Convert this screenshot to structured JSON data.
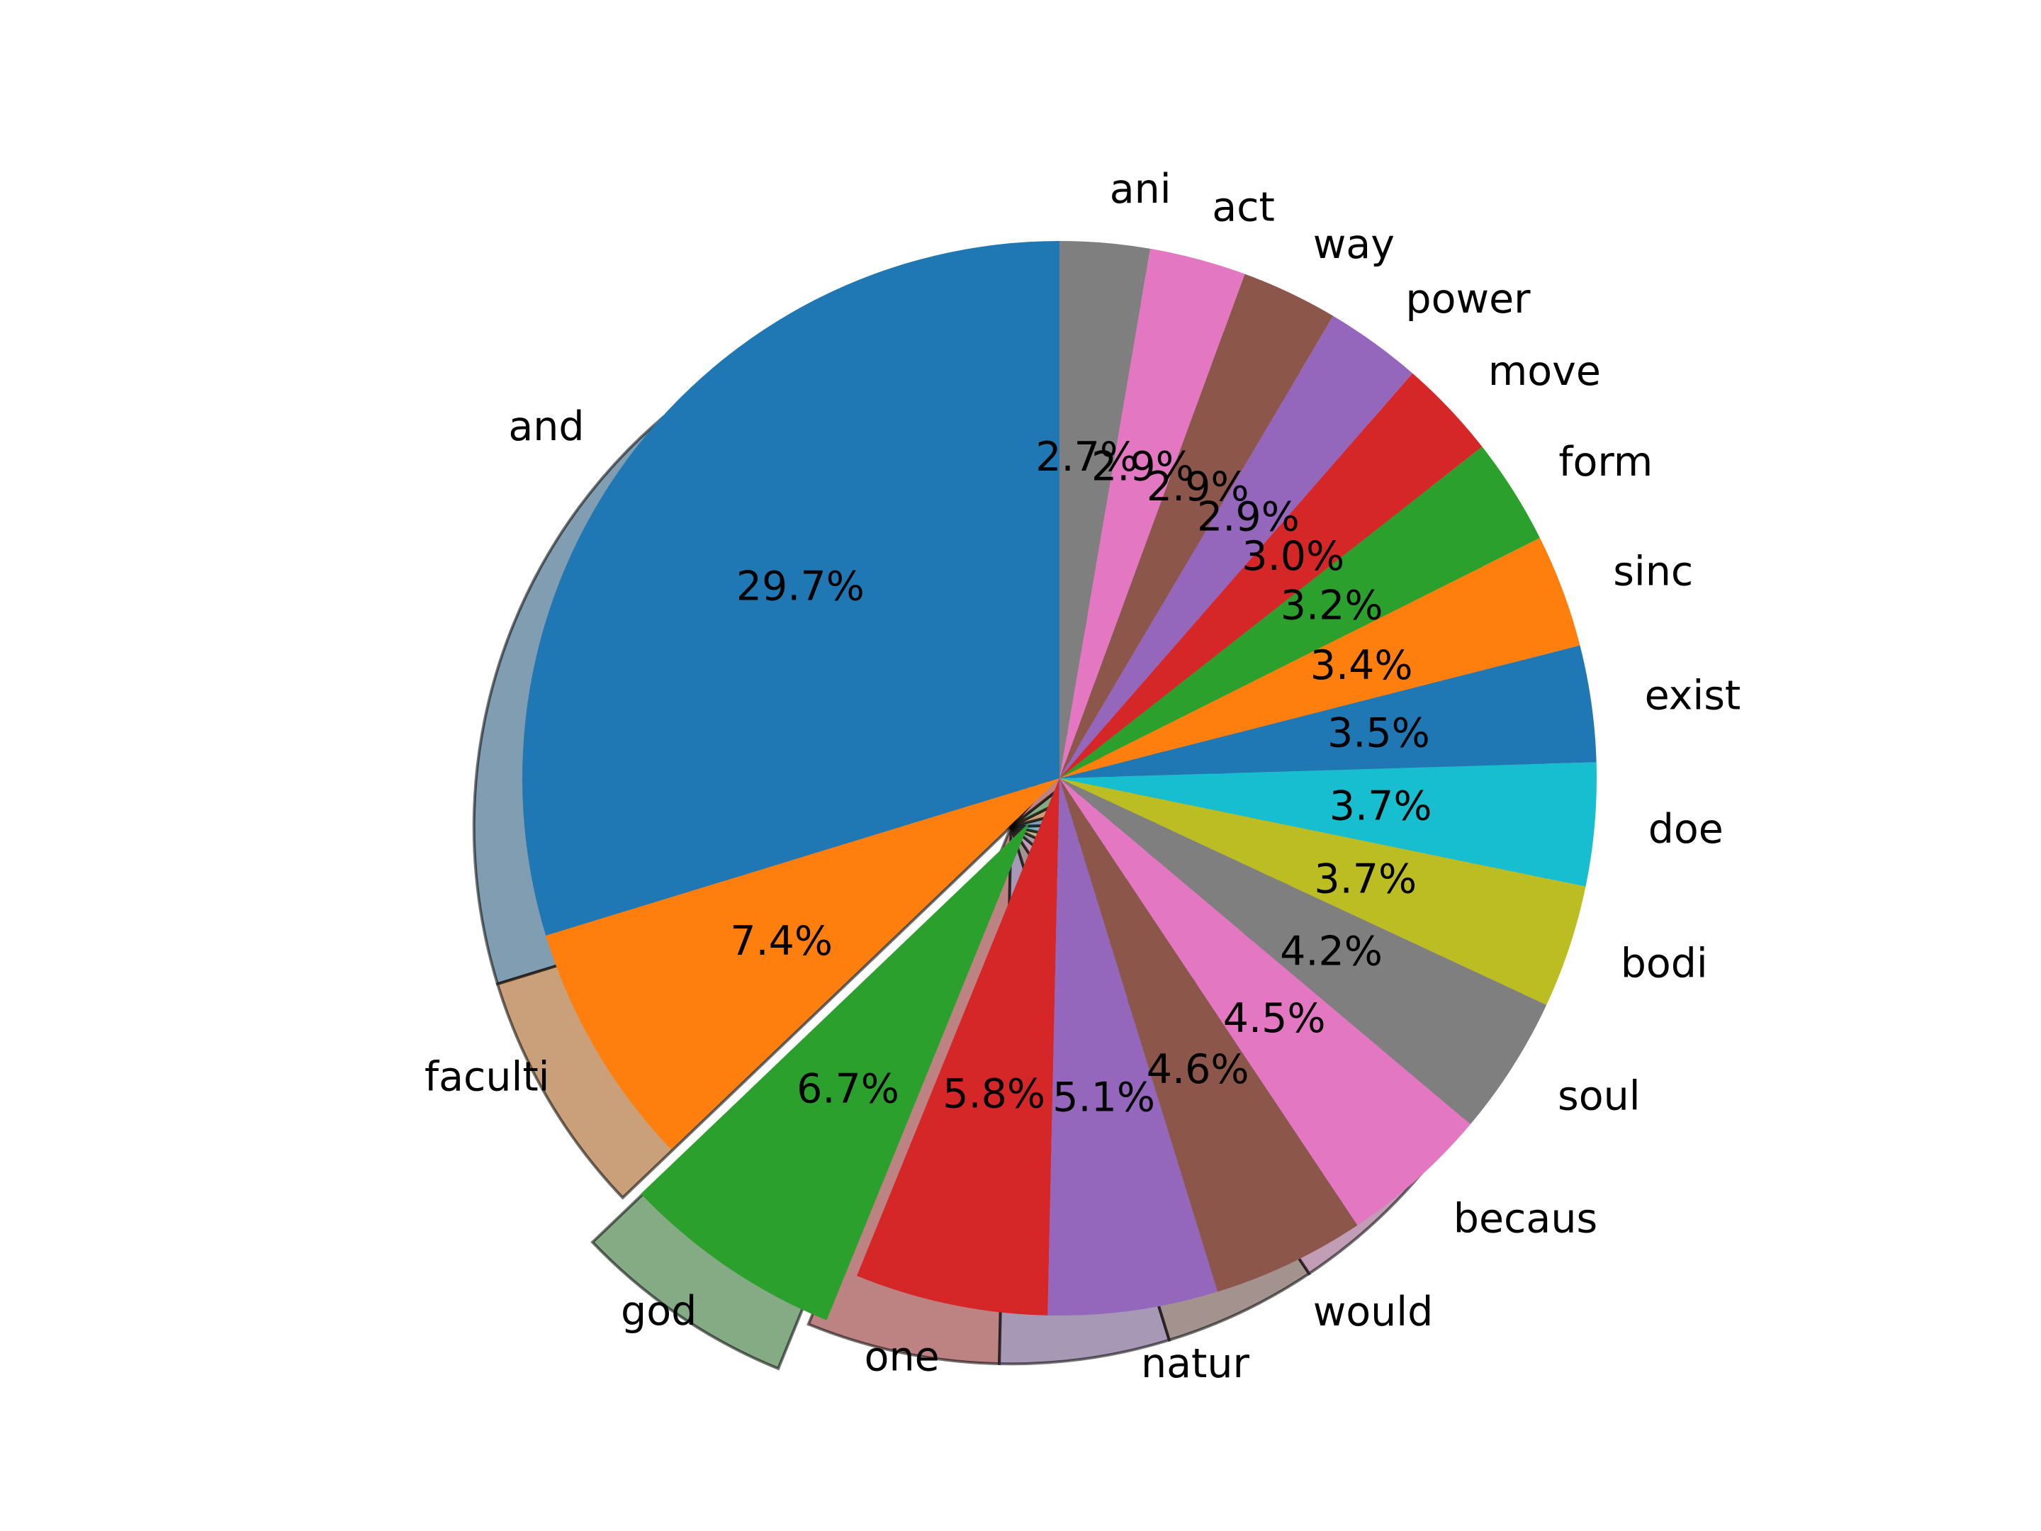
{
  "chart_data": {
    "type": "pie",
    "title": "",
    "start_angle_deg": 90,
    "direction": "counterclockwise",
    "shadow": true,
    "exploded": [
      "god"
    ],
    "slices": [
      {
        "label": "and",
        "value": 29.7,
        "pct_text": "29.7%",
        "color": "#1f77b4"
      },
      {
        "label": "faculti",
        "value": 7.4,
        "pct_text": "7.4%",
        "color": "#ff7f0e"
      },
      {
        "label": "god",
        "value": 6.7,
        "pct_text": "6.7%",
        "color": "#2ca02c"
      },
      {
        "label": "one",
        "value": 5.8,
        "pct_text": "5.8%",
        "color": "#d62728"
      },
      {
        "label": "natur",
        "value": 5.1,
        "pct_text": "5.1%",
        "color": "#9467bd"
      },
      {
        "label": "would",
        "value": 4.6,
        "pct_text": "4.6%",
        "color": "#8c564b"
      },
      {
        "label": "becaus",
        "value": 4.5,
        "pct_text": "4.5%",
        "color": "#e377c2"
      },
      {
        "label": "soul",
        "value": 4.2,
        "pct_text": "4.2%",
        "color": "#7f7f7f"
      },
      {
        "label": "bodi",
        "value": 3.7,
        "pct_text": "3.7%",
        "color": "#bcbd22"
      },
      {
        "label": "doe",
        "value": 3.7,
        "pct_text": "3.7%",
        "color": "#17becf"
      },
      {
        "label": "exist",
        "value": 3.5,
        "pct_text": "3.5%",
        "color": "#1f77b4"
      },
      {
        "label": "sinc",
        "value": 3.4,
        "pct_text": "3.4%",
        "color": "#ff7f0e"
      },
      {
        "label": "form",
        "value": 3.2,
        "pct_text": "3.2%",
        "color": "#2ca02c"
      },
      {
        "label": "move",
        "value": 3.0,
        "pct_text": "3.0%",
        "color": "#d62728"
      },
      {
        "label": "power",
        "value": 2.9,
        "pct_text": "2.9%",
        "color": "#9467bd"
      },
      {
        "label": "way",
        "value": 2.9,
        "pct_text": "2.9%",
        "color": "#8c564b"
      },
      {
        "label": "act",
        "value": 2.9,
        "pct_text": "2.9%",
        "color": "#e377c2"
      },
      {
        "label": "ani",
        "value": 2.7,
        "pct_text": "2.7%",
        "color": "#7f7f7f"
      }
    ]
  }
}
